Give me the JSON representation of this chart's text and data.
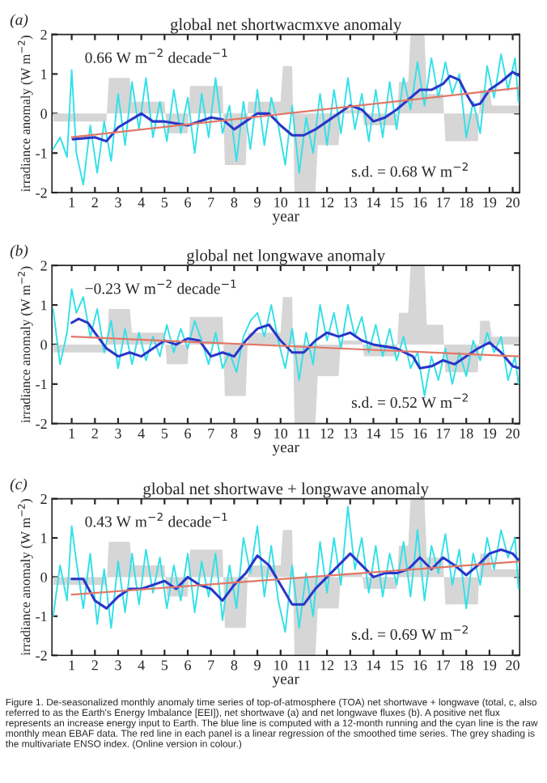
{
  "chart_data": [
    {
      "type": "line",
      "title": "global net shortwacmxve anomaly",
      "xlabel": "year",
      "ylabel": "irradiance anomaly (W m$^{−2}$)",
      "xlim": [
        0.15,
        20.3
      ],
      "xticks": [
        1,
        2,
        3,
        4,
        5,
        6,
        7,
        8,
        9,
        10,
        11,
        12,
        13,
        14,
        15,
        16,
        17,
        18,
        19,
        20
      ],
      "ylim": [
        -2,
        2
      ],
      "yticks": [
        -2,
        -1,
        0,
        1,
        2
      ],
      "grid": false,
      "legend": false,
      "annotations": [
        "(a)",
        "0.66 W m$^{−2}$ decade$^{−1}$",
        "s.d. = 0.68 W m$^{−2}$"
      ],
      "series": [
        {
          "type": "area",
          "color": "#d6d6d6",
          "x": [
            0.2,
            2.5,
            2.6,
            3.5,
            3.6,
            5.0,
            5.1,
            6.0,
            6.1,
            7.5,
            7.6,
            8.5,
            8.6,
            10.0,
            10.1,
            10.5,
            10.6,
            11.5,
            11.6,
            12.5,
            12.6,
            13.5,
            13.6,
            15.0,
            15.1,
            15.5,
            15.6,
            16.2,
            16.3,
            17.0,
            17.1,
            18.5,
            18.6,
            19.0,
            19.1,
            20.3
          ],
          "values": [
            -0.2,
            -0.2,
            0.9,
            0.9,
            0.3,
            0.3,
            -0.5,
            -0.5,
            0.7,
            0.7,
            -1.3,
            -1.3,
            0.3,
            0.3,
            1.2,
            1.2,
            -2.0,
            -2.0,
            -0.8,
            -0.8,
            0.1,
            0.1,
            -0.3,
            -0.3,
            0.8,
            0.8,
            2.0,
            2.0,
            0.5,
            0.5,
            -0.7,
            -0.7,
            0.6,
            0.6,
            0.2,
            0.2
          ]
        },
        {
          "type": "line",
          "color": "#33e0e8",
          "x": [
            0.2,
            0.5,
            0.8,
            1.0,
            1.2,
            1.5,
            1.8,
            2.1,
            2.4,
            2.7,
            3.0,
            3.3,
            3.6,
            3.9,
            4.2,
            4.5,
            4.8,
            5.1,
            5.4,
            5.7,
            6.0,
            6.3,
            6.6,
            6.9,
            7.2,
            7.5,
            7.8,
            8.1,
            8.4,
            8.7,
            9.0,
            9.3,
            9.6,
            9.9,
            10.2,
            10.5,
            10.8,
            11.1,
            11.4,
            11.7,
            12.0,
            12.3,
            12.6,
            12.9,
            13.2,
            13.5,
            13.8,
            14.1,
            14.4,
            14.7,
            15.0,
            15.3,
            15.6,
            15.9,
            16.2,
            16.5,
            16.8,
            17.1,
            17.4,
            17.7,
            18.0,
            18.3,
            18.6,
            18.9,
            19.2,
            19.5,
            19.8,
            20.1,
            20.25
          ],
          "values": [
            -0.9,
            -0.6,
            -1.1,
            1.1,
            -1.0,
            -1.8,
            -0.3,
            -1.5,
            -0.2,
            -1.2,
            0.5,
            -0.8,
            0.8,
            -0.4,
            0.9,
            -0.6,
            0.3,
            -0.7,
            0.6,
            -0.5,
            0.4,
            -1.0,
            0.5,
            -0.6,
            0.9,
            -0.5,
            0.2,
            -1.2,
            0.3,
            -0.9,
            0.6,
            -0.8,
            0.4,
            -0.3,
            -1.3,
            0.2,
            -1.5,
            -0.1,
            -1.0,
            0.5,
            -0.8,
            0.6,
            -0.5,
            0.9,
            -0.4,
            0.5,
            -0.7,
            0.6,
            -0.6,
            0.8,
            -0.4,
            0.9,
            0.1,
            1.3,
            0.2,
            1.4,
            0.4,
            1.3,
            0.5,
            1.0,
            -0.6,
            0.3,
            -0.5,
            1.2,
            0.4,
            1.5,
            0.6,
            1.4,
            0.3
          ]
        },
        {
          "type": "line",
          "color": "#2a35c8",
          "x": [
            1.05,
            2,
            2.5,
            3,
            4,
            4.5,
            5,
            6,
            7,
            7.5,
            8,
            8.5,
            9,
            9.5,
            10,
            10.5,
            11,
            11.5,
            12,
            12.5,
            13,
            13.5,
            14,
            14.5,
            15,
            15.5,
            16,
            16.5,
            17,
            17.3,
            17.7,
            18,
            18.3,
            18.6,
            19,
            19.5,
            20,
            20.3
          ],
          "values": [
            -0.65,
            -0.6,
            -0.7,
            -0.35,
            0,
            -0.2,
            -0.2,
            -0.3,
            -0.1,
            -0.15,
            -0.4,
            -0.2,
            0,
            0,
            -0.3,
            -0.55,
            -0.55,
            -0.4,
            -0.2,
            0,
            0.2,
            0.1,
            -0.2,
            -0.1,
            0.1,
            0.35,
            0.6,
            0.6,
            0.75,
            0.95,
            0.85,
            0.5,
            0.2,
            0.25,
            0.6,
            0.8,
            1.05,
            0.95
          ]
        },
        {
          "type": "line",
          "color": "#e07868",
          "x": [
            1,
            20.3
          ],
          "values": [
            -0.6,
            0.65
          ]
        }
      ]
    },
    {
      "type": "line",
      "title": "global net longwave anomaly",
      "xlabel": "year",
      "ylabel": "irradiance anomaly (W m$^{−2}$)",
      "xlim": [
        0.15,
        20.3
      ],
      "xticks": [
        1,
        2,
        3,
        4,
        5,
        6,
        7,
        8,
        9,
        10,
        11,
        12,
        13,
        14,
        15,
        16,
        17,
        18,
        19,
        20
      ],
      "ylim": [
        -2,
        2
      ],
      "yticks": [
        -2,
        -1,
        0,
        1,
        2
      ],
      "grid": false,
      "legend": false,
      "annotations": [
        "(b)",
        "−0.23 W m$^{−2}$ decade$^{−1}$",
        "s.d. = 0.52 W m$^{−2}$"
      ],
      "series": [
        {
          "type": "area",
          "color": "#d6d6d6",
          "x": [
            0.2,
            2.5,
            2.6,
            3.5,
            3.6,
            5.0,
            5.1,
            6.0,
            6.1,
            7.5,
            7.6,
            8.5,
            8.6,
            10.0,
            10.1,
            10.5,
            10.6,
            11.5,
            11.6,
            12.5,
            12.6,
            13.5,
            13.6,
            15.0,
            15.1,
            15.5,
            15.6,
            16.2,
            16.3,
            17.0,
            17.1,
            18.5,
            18.6,
            19.0,
            19.1,
            20.3
          ],
          "values": [
            -0.2,
            -0.2,
            0.9,
            0.9,
            0.3,
            0.3,
            -0.5,
            -0.5,
            0.7,
            0.7,
            -1.3,
            -1.3,
            0.3,
            0.3,
            1.2,
            1.2,
            -2.0,
            -2.0,
            -0.8,
            -0.8,
            0.1,
            0.1,
            -0.3,
            -0.3,
            0.8,
            0.8,
            2.0,
            2.0,
            0.5,
            0.5,
            -0.7,
            -0.7,
            0.6,
            0.6,
            0.2,
            0.2
          ]
        },
        {
          "type": "line",
          "color": "#33e0e8",
          "x": [
            0.2,
            0.5,
            0.8,
            1.0,
            1.2,
            1.5,
            1.8,
            2.1,
            2.4,
            2.7,
            3.0,
            3.3,
            3.6,
            3.9,
            4.2,
            4.5,
            4.8,
            5.1,
            5.4,
            5.7,
            6.0,
            6.3,
            6.6,
            6.9,
            7.2,
            7.5,
            7.8,
            8.1,
            8.4,
            8.7,
            9.0,
            9.3,
            9.6,
            9.9,
            10.2,
            10.5,
            10.8,
            11.1,
            11.4,
            11.7,
            12.0,
            12.3,
            12.6,
            12.9,
            13.2,
            13.5,
            13.8,
            14.1,
            14.4,
            14.7,
            15.0,
            15.3,
            15.6,
            15.9,
            16.2,
            16.5,
            16.8,
            17.1,
            17.4,
            17.7,
            18.0,
            18.3,
            18.6,
            18.9,
            19.2,
            19.5,
            19.8,
            20.1,
            20.25
          ],
          "values": [
            0.9,
            -0.5,
            0.3,
            1.4,
            0.8,
            1.2,
            0.2,
            0.9,
            -0.2,
            0.6,
            -0.6,
            0.4,
            -0.5,
            0.3,
            -0.4,
            0.2,
            -0.3,
            0.5,
            -0.2,
            0.4,
            -0.1,
            0.6,
            0.1,
            -0.5,
            0.3,
            -0.6,
            -0.2,
            -0.7,
            0.2,
            0.6,
            0.8,
            0.2,
            1.0,
            0.1,
            -0.6,
            0.4,
            -0.9,
            0.3,
            -0.5,
            1.0,
            0.1,
            0.8,
            -0.1,
            1.0,
            0.2,
            0.7,
            -0.2,
            0.5,
            -0.3,
            0.4,
            -0.4,
            0.2,
            -0.6,
            -0.2,
            -1.3,
            -0.3,
            -0.9,
            -0.1,
            -1.0,
            -0.2,
            -0.8,
            0.1,
            -0.4,
            0.3,
            -0.2,
            0.2,
            -0.9,
            -0.3,
            -1.0
          ]
        },
        {
          "type": "line",
          "color": "#2a35c8",
          "x": [
            1,
            1.3,
            1.7,
            2,
            2.5,
            3,
            3.5,
            4,
            4.5,
            5,
            5.5,
            6,
            6.5,
            7,
            7.5,
            8,
            8.5,
            9,
            9.5,
            10,
            10.5,
            11,
            11.5,
            12,
            12.5,
            13,
            13.5,
            14,
            15,
            15.7,
            16,
            16.5,
            17,
            17.5,
            18,
            18.5,
            19,
            19.5,
            20,
            20.3
          ],
          "values": [
            0.55,
            0.65,
            0.55,
            0.3,
            -0.1,
            -0.3,
            -0.2,
            -0.3,
            -0.1,
            0.1,
            0.0,
            0.15,
            0.1,
            -0.3,
            -0.2,
            -0.3,
            0.1,
            0.4,
            0.5,
            0.1,
            -0.2,
            -0.2,
            0.1,
            0.3,
            0.2,
            0.3,
            0.1,
            0.0,
            -0.1,
            -0.3,
            -0.6,
            -0.55,
            -0.4,
            -0.5,
            -0.3,
            -0.1,
            0.05,
            -0.2,
            -0.55,
            -0.6
          ]
        },
        {
          "type": "line",
          "color": "#e07868",
          "x": [
            1,
            20.3
          ],
          "values": [
            0.2,
            -0.3
          ]
        }
      ]
    },
    {
      "type": "line",
      "title": "global net shortwave + longwave anomaly",
      "xlabel": "year",
      "ylabel": "irradiance anomaly (W m$^{−2}$)",
      "xlim": [
        0.15,
        20.3
      ],
      "xticks": [
        1,
        2,
        3,
        4,
        5,
        6,
        7,
        8,
        9,
        10,
        11,
        12,
        13,
        14,
        15,
        16,
        17,
        18,
        19,
        20
      ],
      "ylim": [
        -2,
        2
      ],
      "yticks": [
        -2,
        -1,
        0,
        1,
        2
      ],
      "grid": false,
      "legend": false,
      "annotations": [
        "(c)",
        "0.43 W m$^{−2}$ decade$^{−1}$",
        "s.d. = 0.69 W m$^{−2}$",
        "Figure 1. De-seasonalized monthly anomaly time series of top-of-atmosphere (TOA) net shortwave + longwave (total, c, also referred to as the Earth's Energy Imbalance [EEI]), net shortwave (a) and net longwave fluxes (b). A positive net flux represents an increase energy input to Earth. The blue line is computed with a 12-month running and the cyan line is the raw monthly mean EBAF data. The red line in each panel is a linear regression of the smoothed time series. The grey shading is the multivariate ENSO index. (Online version in colour.)"
      ],
      "series": [
        {
          "type": "area",
          "color": "#d6d6d6",
          "x": [
            0.2,
            2.5,
            2.6,
            3.5,
            3.6,
            5.0,
            5.1,
            6.0,
            6.1,
            7.5,
            7.6,
            8.5,
            8.6,
            10.0,
            10.1,
            10.5,
            10.6,
            11.5,
            11.6,
            12.5,
            12.6,
            13.5,
            13.6,
            15.0,
            15.1,
            15.5,
            15.6,
            16.2,
            16.3,
            17.0,
            17.1,
            18.5,
            18.6,
            19.0,
            19.1,
            20.3
          ],
          "values": [
            -0.2,
            -0.2,
            0.9,
            0.9,
            0.3,
            0.3,
            -0.5,
            -0.5,
            0.7,
            0.7,
            -1.3,
            -1.3,
            0.3,
            0.3,
            1.2,
            1.2,
            -2.0,
            -2.0,
            -0.8,
            -0.8,
            0.1,
            0.1,
            -0.3,
            -0.3,
            0.8,
            0.8,
            2.0,
            2.0,
            0.5,
            0.5,
            -0.7,
            -0.7,
            0.6,
            0.6,
            0.2,
            0.2
          ]
        },
        {
          "type": "line",
          "color": "#33e0e8",
          "x": [
            0.2,
            0.5,
            0.8,
            1.0,
            1.2,
            1.5,
            1.8,
            2.1,
            2.4,
            2.7,
            3.0,
            3.3,
            3.6,
            3.9,
            4.2,
            4.5,
            4.8,
            5.1,
            5.4,
            5.7,
            6.0,
            6.3,
            6.6,
            6.9,
            7.2,
            7.5,
            7.8,
            8.1,
            8.4,
            8.7,
            9.0,
            9.3,
            9.6,
            9.9,
            10.2,
            10.5,
            10.8,
            11.1,
            11.4,
            11.7,
            12.0,
            12.3,
            12.6,
            12.9,
            13.2,
            13.5,
            13.8,
            14.1,
            14.4,
            14.7,
            15.0,
            15.3,
            15.6,
            15.9,
            16.2,
            16.5,
            16.8,
            17.1,
            17.4,
            17.7,
            18.0,
            18.3,
            18.6,
            18.9,
            19.2,
            19.5,
            19.8,
            20.1,
            20.25
          ],
          "values": [
            -1.0,
            0.3,
            -0.6,
            1.3,
            0.4,
            -0.8,
            0.6,
            -1.2,
            0.2,
            -1.3,
            0.4,
            -0.9,
            0.6,
            -0.7,
            0.7,
            -0.4,
            0.5,
            -0.8,
            0.3,
            -0.6,
            0.6,
            -0.9,
            0.4,
            -0.5,
            0.6,
            -1.1,
            0.3,
            -0.8,
            1.0,
            0.1,
            1.3,
            -0.5,
            0.8,
            -0.6,
            -1.4,
            0.3,
            -1.3,
            0.1,
            -1.0,
            0.9,
            -0.4,
            1.0,
            -0.2,
            1.8,
            0.2,
            1.0,
            -0.4,
            0.8,
            -0.5,
            0.6,
            -0.2,
            0.9,
            -0.5,
            1.2,
            -0.6,
            0.8,
            0.1,
            1.1,
            -0.2,
            0.7,
            -0.8,
            0.6,
            -0.2,
            1.0,
            0.2,
            1.2,
            0.5,
            1.0,
            -0.3
          ]
        },
        {
          "type": "line",
          "color": "#2a35c8",
          "x": [
            1,
            1.5,
            2,
            2.5,
            3,
            3.5,
            4,
            4.5,
            5,
            5.5,
            6,
            6.5,
            7,
            7.5,
            8,
            8.5,
            9,
            9.5,
            10,
            10.5,
            11,
            11.5,
            12,
            12.5,
            13,
            13.5,
            14,
            14.5,
            15,
            15.5,
            16,
            16.5,
            17,
            17.5,
            18,
            18.5,
            19,
            19.5,
            20,
            20.3
          ],
          "values": [
            -0.05,
            -0.05,
            -0.6,
            -0.8,
            -0.5,
            -0.3,
            -0.3,
            -0.2,
            -0.1,
            -0.3,
            0.0,
            -0.2,
            -0.3,
            -0.6,
            -0.2,
            0.1,
            0.55,
            0.3,
            -0.2,
            -0.7,
            -0.7,
            -0.3,
            0.0,
            0.3,
            0.6,
            0.3,
            0.0,
            0.1,
            0.1,
            0.2,
            0.5,
            0.2,
            0.5,
            0.3,
            0.05,
            0.3,
            0.6,
            0.7,
            0.6,
            0.4
          ]
        },
        {
          "type": "line",
          "color": "#e07868",
          "x": [
            1,
            20.3
          ],
          "values": [
            -0.45,
            0.4
          ]
        }
      ]
    }
  ]
}
